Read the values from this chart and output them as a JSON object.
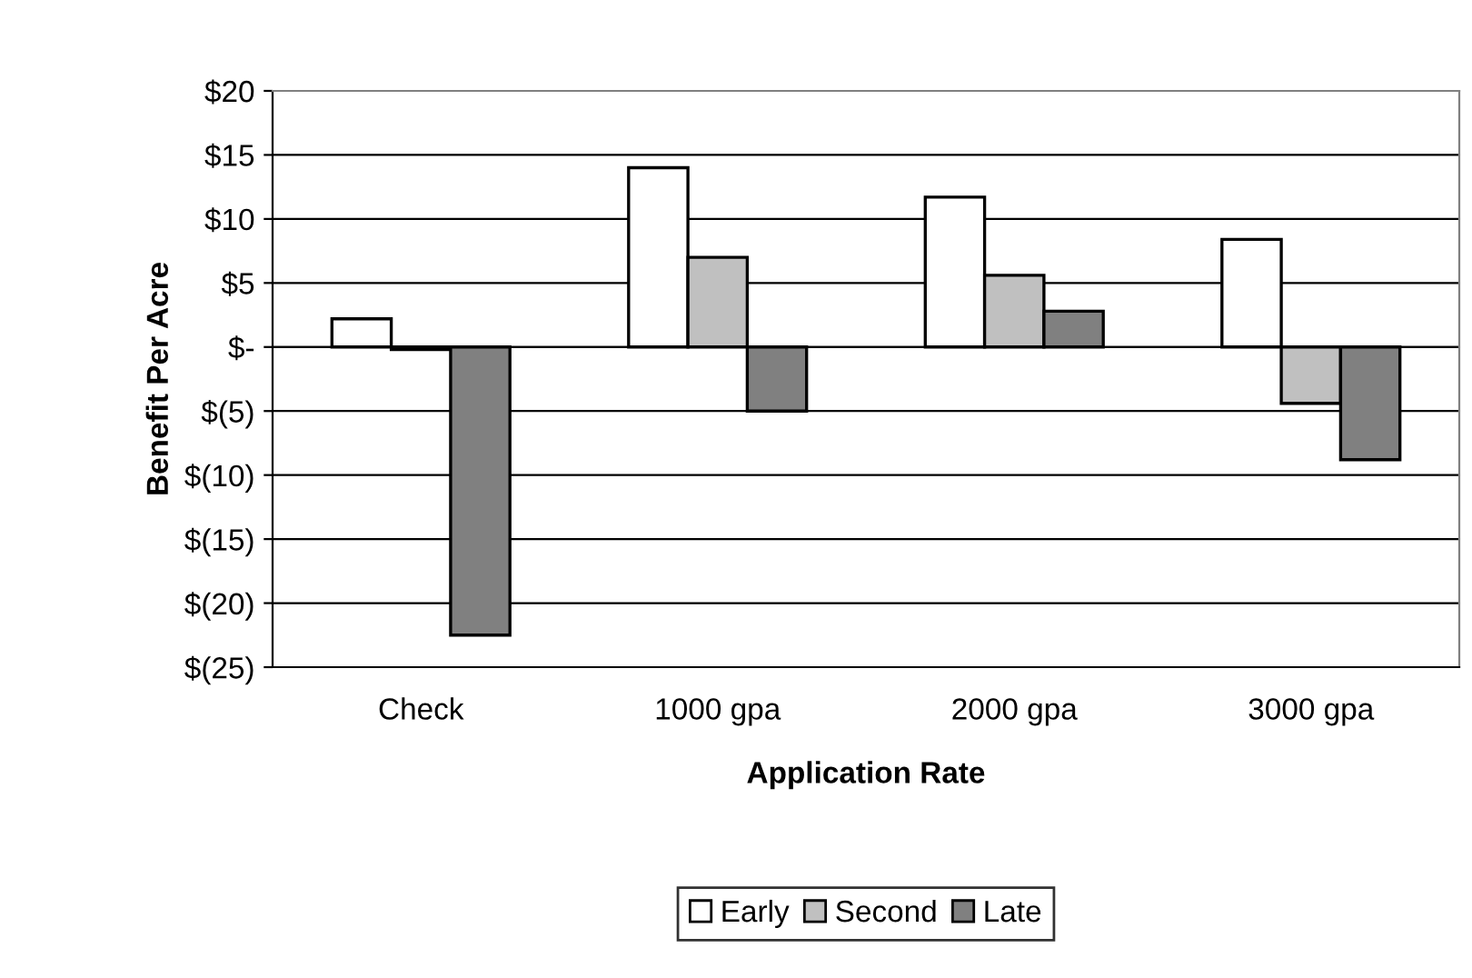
{
  "chart_data": {
    "type": "bar",
    "xlabel": "Application Rate",
    "ylabel": "Benefit Per Acre",
    "categories": [
      "Check",
      "1000 gpa",
      "2000 gpa",
      "3000 gpa"
    ],
    "series": [
      {
        "name": "Early",
        "color": "#ffffff",
        "values": [
          2.2,
          14.0,
          11.7,
          8.4
        ]
      },
      {
        "name": "Second",
        "color": "#c0c0c0",
        "values": [
          -0.2,
          7.0,
          5.6,
          -4.4
        ]
      },
      {
        "name": "Late",
        "color": "#808080",
        "values": [
          -22.5,
          -5.0,
          2.8,
          -8.8
        ]
      }
    ],
    "ylim": [
      -25,
      20
    ],
    "yticks": [
      {
        "value": -25,
        "label": "$(25)"
      },
      {
        "value": -20,
        "label": "$(20)"
      },
      {
        "value": -15,
        "label": "$(15)"
      },
      {
        "value": -10,
        "label": "$(10)"
      },
      {
        "value": -5,
        "label": "$(5)"
      },
      {
        "value": 0,
        "label": "$-"
      },
      {
        "value": 5,
        "label": "$5"
      },
      {
        "value": 10,
        "label": "$10"
      },
      {
        "value": 15,
        "label": "$15"
      },
      {
        "value": 20,
        "label": "$20"
      }
    ],
    "grid": "y",
    "legend": "bottom"
  }
}
